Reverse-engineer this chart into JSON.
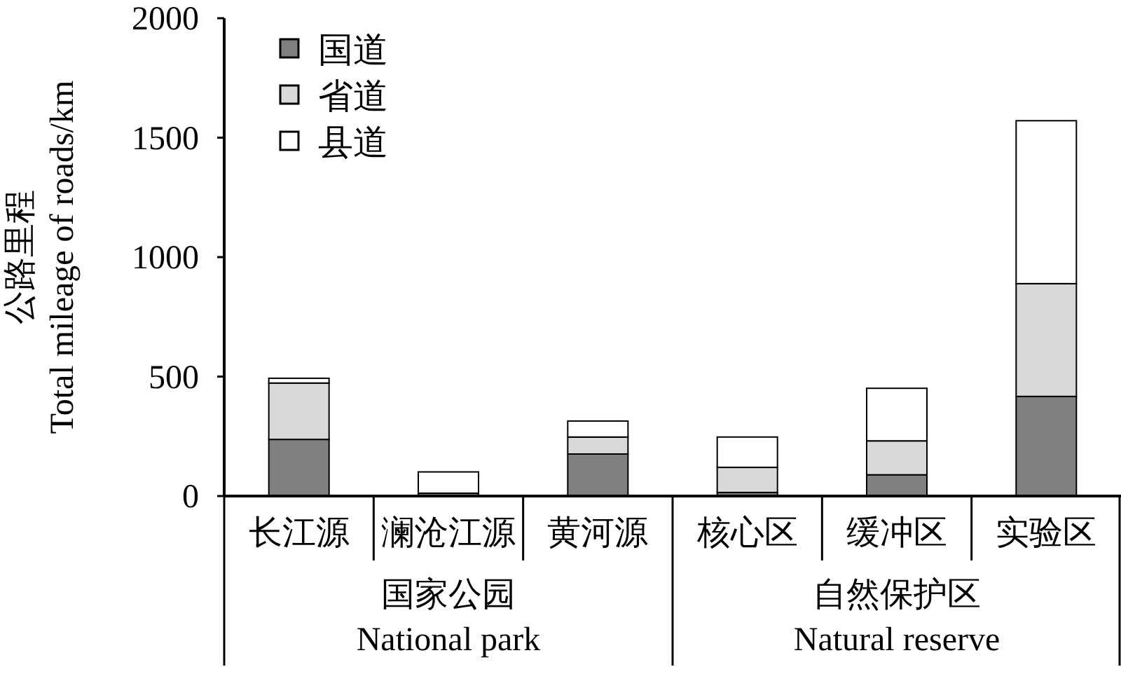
{
  "chart_data": {
    "type": "bar",
    "stacked": true,
    "ylabel": "公路里程\nTotal mileage of roads/km",
    "categories": [
      "长江源",
      "澜沧江源",
      "黄河源",
      "核心区",
      "缓冲区",
      "实验区"
    ],
    "series": [
      {
        "name": "国道",
        "color": "#808080",
        "values": [
          237,
          12,
          176,
          15,
          89,
          417
        ]
      },
      {
        "name": "省道",
        "color": "#d9d9d9",
        "values": [
          236,
          0,
          71,
          105,
          142,
          472
        ]
      },
      {
        "name": "县道",
        "color": "#ffffff",
        "values": [
          20,
          89,
          67,
          127,
          220,
          682
        ]
      }
    ],
    "ylim": [
      0,
      2000
    ],
    "yticks": [
      0,
      500,
      1000,
      1500,
      2000
    ],
    "legend": "top left",
    "annotations": [
      "国家公园",
      "National park",
      "自然保护区",
      "Natural reserve"
    ]
  }
}
